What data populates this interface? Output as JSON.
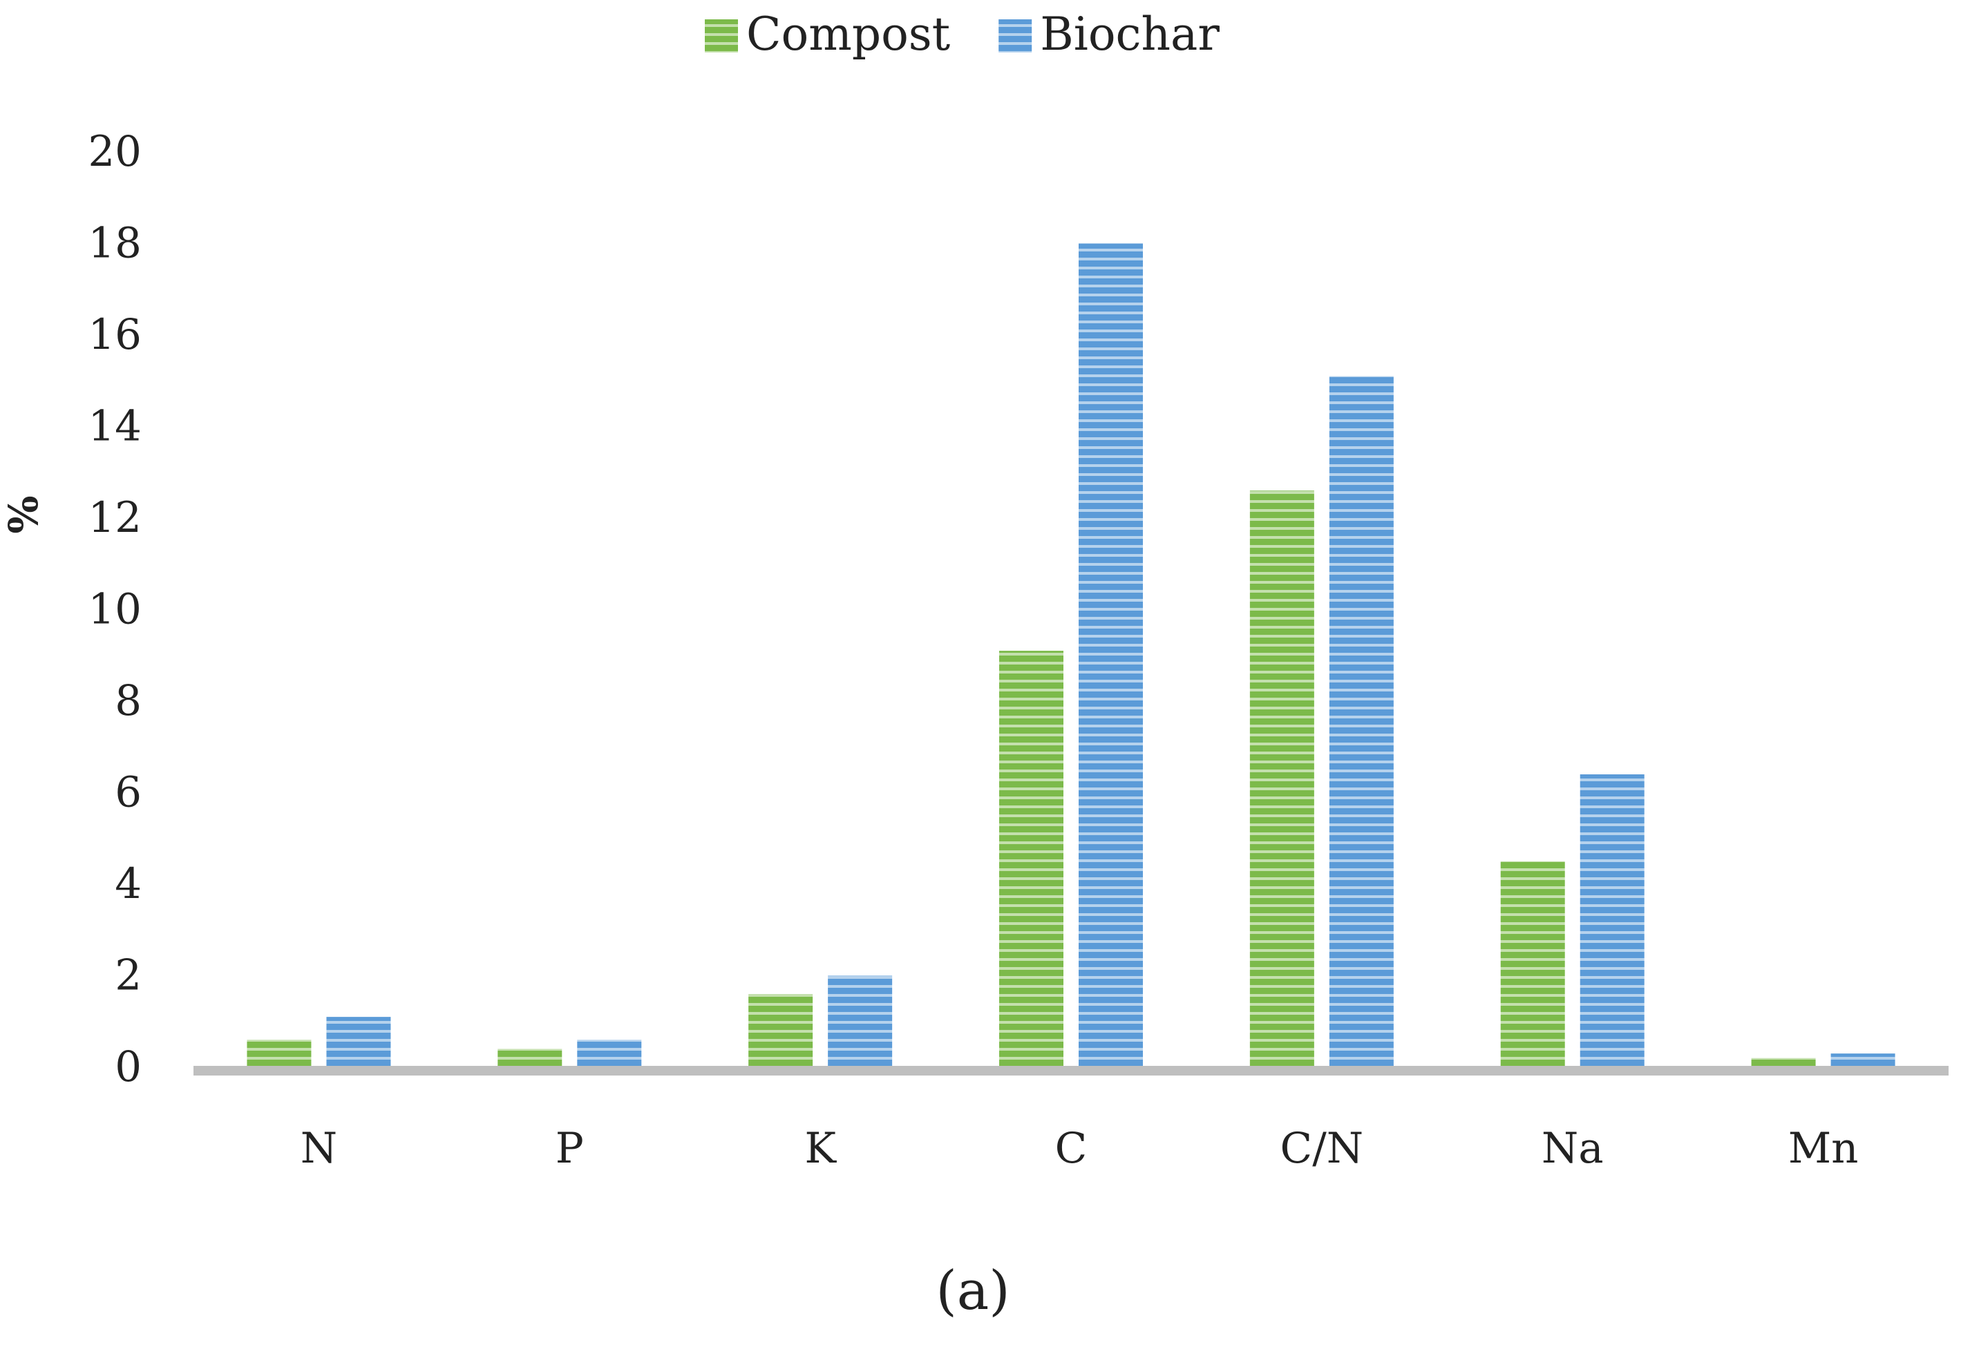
{
  "chart_data": {
    "type": "bar",
    "categories": [
      "N",
      "P",
      "K",
      "C",
      "C/N",
      "Na",
      "Mn"
    ],
    "series": [
      {
        "name": "Compost",
        "values": [
          0.6,
          0.4,
          1.6,
          9.1,
          12.6,
          4.5,
          0.2
        ]
      },
      {
        "name": "Biochar",
        "values": [
          1.1,
          0.6,
          2.0,
          18.0,
          15.1,
          6.4,
          0.3
        ]
      }
    ],
    "ylabel": "%",
    "ylim": [
      0,
      20
    ],
    "yticks": [
      "0",
      "2",
      "4",
      "6",
      "8",
      "10",
      "12",
      "14",
      "16",
      "18",
      "20"
    ],
    "legend_position": "top-center",
    "grid": false,
    "caption": "(a)"
  },
  "colors": {
    "Compost": "#7cba4a",
    "Biochar": "#5b9bd8",
    "stripe": "#ffffff",
    "axis": "#bfbfbf"
  },
  "fill_pattern": "horizontal-stripes"
}
